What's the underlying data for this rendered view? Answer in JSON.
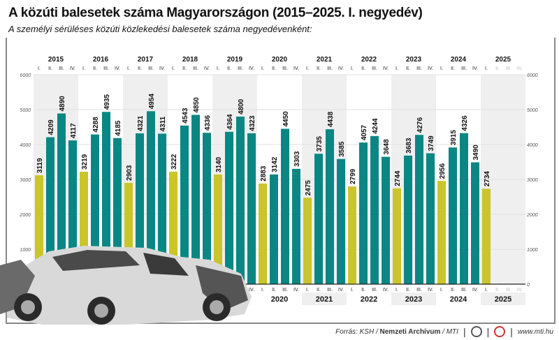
{
  "title": "A közúti balesetek száma Magyarországon (2015–2025. I. negyedév)",
  "subtitle": "A személyi sérüléses közúti közlekedési balesetek száma negyedévenként:",
  "chart_data": {
    "type": "bar",
    "title": "A közúti balesetek száma Magyarországon (2015–2025. I. negyedév)",
    "subtitle": "A személyi sérüléses közúti közlekedési balesetek száma negyedévenként:",
    "years": [
      "2015",
      "2016",
      "2017",
      "2018",
      "2019",
      "2020",
      "2021",
      "2022",
      "2023",
      "2024",
      "2025"
    ],
    "quarters": [
      "I.",
      "II.",
      "III.",
      "IV."
    ],
    "values": [
      [
        3119,
        4209,
        4890,
        4117
      ],
      [
        3219,
        4288,
        4935,
        4185
      ],
      [
        2903,
        4321,
        4954,
        4311
      ],
      [
        3222,
        4543,
        4850,
        4336
      ],
      [
        3140,
        4364,
        4800,
        4323
      ],
      [
        2883,
        3142,
        4450,
        3303
      ],
      [
        2475,
        3735,
        4438,
        3585
      ],
      [
        2799,
        4057,
        4244,
        3648
      ],
      [
        2744,
        3683,
        4276,
        3749
      ],
      [
        2956,
        3915,
        4326,
        3490
      ],
      [
        2734,
        null,
        null,
        null
      ]
    ],
    "ylim": [
      0,
      6000
    ],
    "yticks": [
      0,
      1000,
      2000,
      3000,
      4000,
      5000,
      6000
    ],
    "grid": true,
    "colors": {
      "first_quarter": "#c9c52b",
      "other_quarters": "#0a8784",
      "band": "#efefef"
    }
  },
  "footer": {
    "source_prefix": "Forrás: KSH / ",
    "source_bold": "Nemzeti Archívum",
    "source_suffix": " / MTI",
    "website": "www.mti.hu",
    "logos": [
      "MTVA",
      "MTI"
    ]
  }
}
